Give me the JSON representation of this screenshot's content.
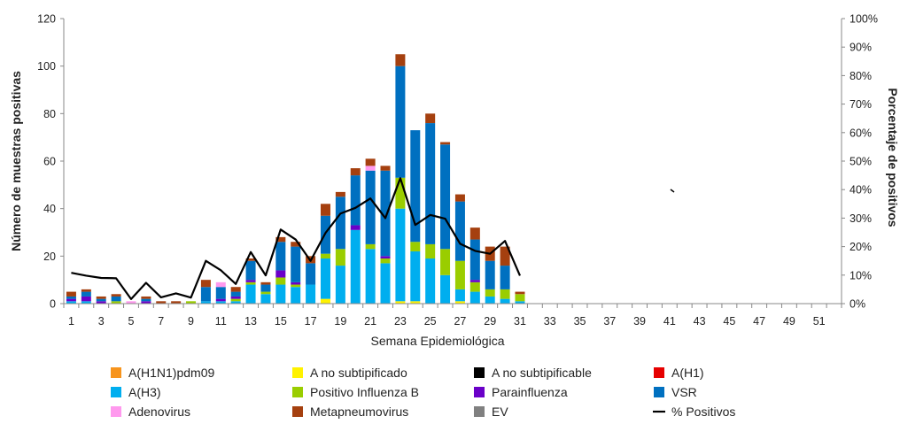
{
  "chart_data": {
    "type": "bar",
    "stacked": true,
    "xlabel": "Semana Epidemiológica",
    "ylabel": "Número de muestras positivas",
    "y2label": "Porcentaje de positivos",
    "ylim": [
      0,
      120
    ],
    "y2lim": [
      0,
      100
    ],
    "yticks": [
      "0",
      "20",
      "40",
      "60",
      "80",
      "100",
      "120"
    ],
    "y2ticks": [
      "0%",
      "10%",
      "20%",
      "30%",
      "40%",
      "50%",
      "60%",
      "70%",
      "80%",
      "90%",
      "100%"
    ],
    "weeks": [
      1,
      2,
      3,
      4,
      5,
      6,
      7,
      8,
      9,
      10,
      11,
      12,
      13,
      14,
      15,
      16,
      17,
      18,
      19,
      20,
      21,
      22,
      23,
      24,
      25,
      26,
      27,
      28,
      29,
      30,
      31,
      32,
      33,
      34,
      35,
      36,
      37,
      38,
      39,
      40,
      41,
      42,
      43,
      44,
      45,
      46,
      47,
      48,
      49,
      50,
      51,
      52
    ],
    "xtick_labels": [
      "1",
      "3",
      "5",
      "7",
      "9",
      "11",
      "13",
      "15",
      "17",
      "19",
      "21",
      "23",
      "25",
      "27",
      "29",
      "31",
      "33",
      "35",
      "37",
      "39",
      "41",
      "43",
      "45",
      "47",
      "49",
      "51"
    ],
    "series": [
      {
        "name": "A(H1N1)pdm09",
        "color": "#F7941D",
        "values": [
          0,
          0,
          0,
          0,
          0,
          0,
          0,
          0,
          0,
          0,
          0,
          0,
          0,
          0,
          0,
          0,
          0,
          0,
          0,
          0,
          0,
          0,
          0,
          0,
          0,
          0,
          0,
          0,
          0,
          0,
          0
        ]
      },
      {
        "name": "A no subtipificado",
        "color": "#FFF200",
        "values": [
          0,
          0,
          0,
          0,
          0,
          0,
          0,
          0,
          0,
          0,
          0,
          0,
          0,
          0,
          0,
          0,
          0,
          2,
          0,
          0,
          0,
          0,
          1,
          1,
          0,
          0,
          1,
          0,
          0,
          0,
          0
        ]
      },
      {
        "name": "A no subtipificable",
        "color": "#000000",
        "values": [
          0,
          0,
          0,
          0,
          0,
          0,
          0,
          0,
          0,
          0,
          0,
          0,
          0,
          0,
          0,
          0,
          0,
          0,
          0,
          0,
          0,
          0,
          0,
          0,
          0,
          0,
          0,
          0,
          0,
          0,
          0
        ]
      },
      {
        "name": "A(H1)",
        "color": "#E60000",
        "values": [
          0,
          0,
          0,
          0,
          0,
          0,
          0,
          0,
          0,
          0,
          0,
          0,
          0,
          0,
          0,
          0,
          0,
          0,
          0,
          0,
          0,
          0,
          0,
          0,
          0,
          0,
          0,
          0,
          0,
          0,
          0
        ]
      },
      {
        "name": "A(H3)",
        "color": "#00AEEF",
        "values": [
          1,
          1,
          0,
          0,
          0,
          0,
          0,
          0,
          0,
          1,
          1,
          1,
          8,
          4,
          8,
          7,
          8,
          17,
          16,
          31,
          23,
          17,
          39,
          21,
          19,
          12,
          5,
          5,
          3,
          2,
          1
        ]
      },
      {
        "name": "Positivo Influenza  B",
        "color": "#9ACD00",
        "values": [
          0,
          0,
          0,
          1,
          0,
          0,
          0,
          0,
          1,
          0,
          0,
          1,
          1,
          1,
          3,
          1,
          0,
          2,
          7,
          0,
          2,
          2,
          13,
          4,
          6,
          11,
          12,
          4,
          3,
          4,
          3
        ]
      },
      {
        "name": "Parainfluenza",
        "color": "#6A00C8",
        "values": [
          1,
          2,
          1,
          0,
          0,
          1,
          0,
          0,
          0,
          0,
          1,
          1,
          1,
          0,
          3,
          1,
          0,
          0,
          0,
          2,
          0,
          1,
          0,
          0,
          0,
          0,
          0,
          1,
          0,
          0,
          0
        ]
      },
      {
        "name": "VSR",
        "color": "#0070C0",
        "values": [
          1,
          2,
          1,
          2,
          0,
          1,
          0,
          0,
          0,
          6,
          5,
          2,
          8,
          3,
          12,
          15,
          9,
          16,
          22,
          21,
          31,
          36,
          47,
          47,
          51,
          44,
          25,
          17,
          12,
          10,
          0
        ]
      },
      {
        "name": "Adenovirus",
        "color": "#FF99EE",
        "values": [
          0,
          0,
          0,
          0,
          1,
          0,
          0,
          0,
          0,
          0,
          2,
          0,
          0,
          0,
          0,
          0,
          0,
          0,
          0,
          0,
          2,
          0,
          0,
          0,
          0,
          0,
          0,
          0,
          0,
          0,
          0
        ]
      },
      {
        "name": "Metapneumovirus",
        "color": "#A5400F",
        "values": [
          2,
          1,
          1,
          1,
          0,
          1,
          1,
          1,
          0,
          3,
          0,
          2,
          1,
          1,
          2,
          2,
          3,
          5,
          2,
          3,
          3,
          2,
          5,
          0,
          4,
          1,
          3,
          5,
          6,
          8,
          1
        ]
      },
      {
        "name": "EV",
        "color": "#808080",
        "values": [
          0,
          0,
          0,
          0,
          0,
          0,
          0,
          0,
          0,
          0,
          0,
          0,
          0,
          0,
          0,
          0,
          0,
          0,
          0,
          0,
          0,
          0,
          0,
          0,
          0,
          0,
          0,
          0,
          0,
          0,
          0
        ]
      }
    ],
    "line": {
      "name": "% Positivos",
      "color": "#000000",
      "axis": "right",
      "values": [
        10.8,
        9.8,
        9,
        8.9,
        1.6,
        7.3,
        2.2,
        3.6,
        2.1,
        15,
        11.7,
        6.9,
        18.1,
        9.9,
        26,
        22.5,
        15,
        24.8,
        31.6,
        33.6,
        36.9,
        30,
        44,
        27.6,
        31.1,
        29.8,
        21,
        18.5,
        17.5,
        22,
        9.8
      ]
    },
    "legend": {
      "placement": "bottom",
      "order": [
        "A(H1N1)pdm09",
        "A no subtipificado",
        "A no subtipificable",
        "A(H1)",
        "A(H3)",
        "Positivo Influenza  B",
        "Parainfluenza",
        "VSR",
        "Adenovirus",
        "Metapneumovirus",
        "EV",
        "% Positivos"
      ]
    },
    "grid": false
  }
}
